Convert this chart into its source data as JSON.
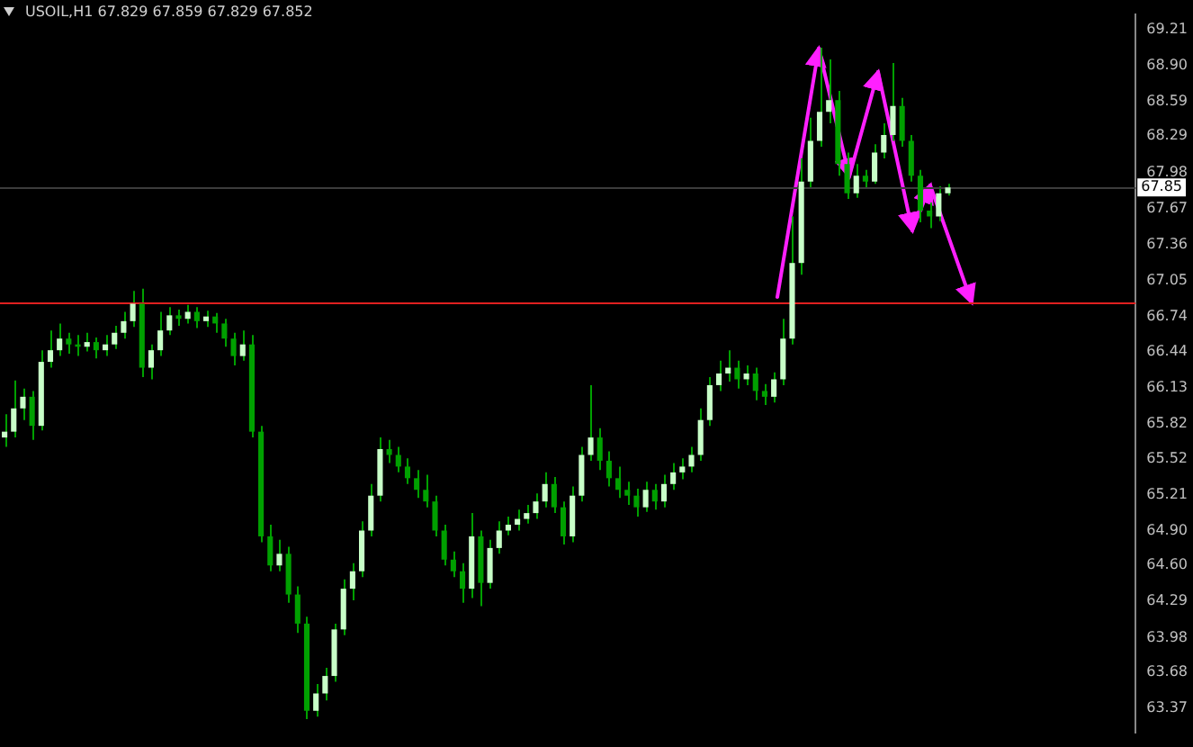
{
  "chart_data": {
    "type": "candlestick",
    "title": "USOIL,H1 67.829 67.859 67.829 67.852",
    "categories": [
      null,
      null,
      null,
      null,
      null,
      null,
      null,
      null,
      null,
      null,
      null,
      null,
      null,
      null,
      null,
      null,
      null,
      null,
      null,
      null,
      null,
      null,
      null,
      null,
      null,
      null,
      null,
      null,
      null,
      null,
      null,
      null,
      null,
      null,
      null,
      null,
      null,
      null,
      null,
      null,
      null,
      null,
      null,
      null,
      null,
      null,
      null,
      null,
      null,
      null,
      null,
      null,
      null,
      null,
      null,
      null,
      null,
      null,
      null,
      null,
      null,
      null,
      null,
      null,
      null,
      null,
      null,
      null,
      null,
      null,
      null,
      null,
      null,
      null,
      null,
      null,
      null,
      null,
      null,
      null,
      null,
      null,
      null,
      null,
      null,
      null,
      null,
      null,
      null,
      null,
      null,
      null,
      null,
      null,
      null,
      null,
      null,
      null,
      null,
      null,
      null,
      null,
      null,
      null,
      null,
      null,
      null,
      null,
      null,
      null,
      null,
      null,
      null,
      null,
      null,
      null,
      null,
      null,
      null,
      null,
      null,
      null,
      null,
      null
    ],
    "ohlc": [
      [
        65.7,
        65.9,
        65.62,
        65.75
      ],
      [
        65.75,
        66.19,
        65.7,
        65.95
      ],
      [
        65.95,
        66.12,
        65.85,
        66.05
      ],
      [
        66.05,
        66.1,
        65.68,
        65.8
      ],
      [
        65.8,
        66.45,
        65.76,
        66.35
      ],
      [
        66.35,
        66.62,
        66.3,
        66.45
      ],
      [
        66.45,
        66.68,
        66.4,
        66.55
      ],
      [
        66.55,
        66.6,
        66.42,
        66.5
      ],
      [
        66.5,
        66.58,
        66.4,
        66.48
      ],
      [
        66.48,
        66.6,
        66.44,
        66.52
      ],
      [
        66.52,
        66.56,
        66.38,
        66.45
      ],
      [
        66.45,
        66.58,
        66.4,
        66.5
      ],
      [
        66.5,
        66.66,
        66.46,
        66.6
      ],
      [
        66.6,
        66.78,
        66.55,
        66.7
      ],
      [
        66.7,
        66.96,
        66.65,
        66.85
      ],
      [
        66.85,
        66.98,
        66.22,
        66.3
      ],
      [
        66.3,
        66.5,
        66.2,
        66.45
      ],
      [
        66.45,
        66.78,
        66.4,
        66.62
      ],
      [
        66.62,
        66.82,
        66.58,
        66.75
      ],
      [
        66.75,
        66.8,
        66.66,
        66.72
      ],
      [
        66.72,
        66.84,
        66.68,
        66.78
      ],
      [
        66.78,
        66.82,
        66.64,
        66.7
      ],
      [
        66.7,
        66.79,
        66.65,
        66.74
      ],
      [
        66.74,
        66.77,
        66.6,
        66.68
      ],
      [
        66.68,
        66.72,
        66.48,
        66.55
      ],
      [
        66.55,
        66.6,
        66.32,
        66.4
      ],
      [
        66.4,
        66.62,
        66.36,
        66.5
      ],
      [
        66.5,
        66.58,
        65.7,
        65.75
      ],
      [
        65.75,
        65.8,
        64.8,
        64.85
      ],
      [
        64.85,
        64.95,
        64.55,
        64.6
      ],
      [
        64.6,
        64.82,
        64.55,
        64.7
      ],
      [
        64.7,
        64.76,
        64.28,
        64.35
      ],
      [
        64.35,
        64.42,
        64.02,
        64.1
      ],
      [
        64.1,
        64.16,
        63.28,
        63.35
      ],
      [
        63.35,
        63.58,
        63.3,
        63.5
      ],
      [
        63.5,
        63.72,
        63.44,
        63.65
      ],
      [
        63.65,
        64.1,
        63.6,
        64.05
      ],
      [
        64.05,
        64.48,
        64.0,
        64.4
      ],
      [
        64.4,
        64.62,
        64.3,
        64.55
      ],
      [
        64.55,
        64.98,
        64.5,
        64.9
      ],
      [
        64.9,
        65.3,
        64.85,
        65.2
      ],
      [
        65.2,
        65.7,
        65.15,
        65.6
      ],
      [
        65.6,
        65.68,
        65.48,
        65.55
      ],
      [
        65.55,
        65.62,
        65.4,
        65.45
      ],
      [
        65.45,
        65.52,
        65.3,
        65.35
      ],
      [
        65.35,
        65.42,
        65.18,
        65.25
      ],
      [
        65.25,
        65.38,
        65.1,
        65.15
      ],
      [
        65.15,
        65.2,
        64.85,
        64.9
      ],
      [
        64.9,
        64.95,
        64.6,
        64.65
      ],
      [
        64.65,
        64.72,
        64.5,
        64.55
      ],
      [
        64.55,
        64.62,
        64.28,
        64.4
      ],
      [
        64.4,
        65.05,
        64.32,
        64.85
      ],
      [
        64.85,
        64.9,
        64.25,
        64.45
      ],
      [
        64.45,
        64.82,
        64.4,
        64.75
      ],
      [
        64.75,
        64.98,
        64.7,
        64.9
      ],
      [
        64.9,
        65.02,
        64.86,
        64.95
      ],
      [
        64.95,
        65.08,
        64.9,
        65.0
      ],
      [
        65.0,
        65.12,
        64.96,
        65.05
      ],
      [
        65.05,
        65.22,
        65.0,
        65.15
      ],
      [
        65.15,
        65.4,
        65.1,
        65.3
      ],
      [
        65.3,
        65.36,
        65.05,
        65.1
      ],
      [
        65.1,
        65.15,
        64.78,
        64.85
      ],
      [
        64.85,
        65.28,
        64.8,
        65.2
      ],
      [
        65.2,
        65.62,
        65.15,
        65.55
      ],
      [
        65.55,
        66.15,
        65.5,
        65.7
      ],
      [
        65.7,
        65.78,
        65.42,
        65.5
      ],
      [
        65.5,
        65.58,
        65.28,
        65.35
      ],
      [
        65.35,
        65.45,
        65.18,
        65.25
      ],
      [
        65.25,
        65.32,
        65.12,
        65.2
      ],
      [
        65.2,
        65.26,
        65.02,
        65.1
      ],
      [
        65.1,
        65.32,
        65.06,
        65.25
      ],
      [
        65.25,
        65.3,
        65.08,
        65.15
      ],
      [
        65.15,
        65.38,
        65.1,
        65.3
      ],
      [
        65.3,
        65.48,
        65.25,
        65.4
      ],
      [
        65.4,
        65.52,
        65.34,
        65.45
      ],
      [
        65.45,
        65.62,
        65.4,
        65.55
      ],
      [
        65.55,
        65.95,
        65.5,
        65.85
      ],
      [
        65.85,
        66.22,
        65.8,
        66.15
      ],
      [
        66.15,
        66.36,
        66.1,
        66.25
      ],
      [
        66.25,
        66.45,
        66.18,
        66.3
      ],
      [
        66.3,
        66.36,
        66.12,
        66.2
      ],
      [
        66.2,
        66.32,
        66.15,
        66.25
      ],
      [
        66.25,
        66.3,
        66.02,
        66.1
      ],
      [
        66.1,
        66.16,
        65.98,
        66.05
      ],
      [
        66.05,
        66.26,
        66.0,
        66.2
      ],
      [
        66.2,
        66.72,
        66.15,
        66.55
      ],
      [
        66.55,
        67.6,
        66.5,
        67.2
      ],
      [
        67.2,
        68.1,
        67.1,
        67.9
      ],
      [
        67.9,
        68.45,
        67.85,
        68.25
      ],
      [
        68.25,
        69.05,
        68.2,
        68.5
      ],
      [
        68.5,
        68.95,
        68.4,
        68.6
      ],
      [
        68.6,
        68.68,
        67.95,
        68.05
      ],
      [
        68.05,
        68.15,
        67.75,
        67.8
      ],
      [
        67.8,
        68.05,
        67.76,
        67.95
      ],
      [
        67.95,
        68.0,
        67.85,
        67.9
      ],
      [
        67.9,
        68.22,
        67.88,
        68.15
      ],
      [
        68.15,
        68.4,
        68.1,
        68.3
      ],
      [
        68.3,
        68.92,
        68.25,
        68.55
      ],
      [
        68.55,
        68.62,
        68.2,
        68.25
      ],
      [
        68.25,
        68.3,
        67.9,
        67.95
      ],
      [
        67.95,
        68.0,
        67.55,
        67.65
      ],
      [
        67.65,
        67.72,
        67.5,
        67.6
      ],
      [
        67.6,
        67.86,
        67.56,
        67.8
      ],
      [
        67.8,
        67.88,
        67.78,
        67.85
      ],
      null,
      null,
      null,
      null,
      null,
      null,
      null,
      null,
      null,
      null,
      null,
      null,
      null,
      null,
      null,
      null,
      null,
      null,
      null,
      null
    ],
    "color": "#00a000",
    "colors": [
      "#c8ffc8",
      "#c8ffc8",
      "#c8ffc8",
      "#00a000",
      "#c8ffc8",
      "#c8ffc8",
      "#c8ffc8",
      "#00a000",
      "#00a000",
      "#c8ffc8",
      "#00a000",
      "#c8ffc8",
      "#c8ffc8",
      "#c8ffc8",
      "#c8ffc8",
      "#00a000",
      "#c8ffc8",
      "#c8ffc8",
      "#c8ffc8",
      "#00a000",
      "#c8ffc8",
      "#00a000",
      "#c8ffc8",
      "#00a000",
      "#00a000",
      "#00a000",
      "#c8ffc8",
      "#00a000",
      "#00a000",
      "#00a000",
      "#c8ffc8",
      "#00a000",
      "#00a000",
      "#00a000",
      "#c8ffc8",
      "#c8ffc8",
      "#c8ffc8",
      "#c8ffc8",
      "#c8ffc8",
      "#c8ffc8",
      "#c8ffc8",
      "#c8ffc8",
      "#00a000",
      "#00a000",
      "#00a000",
      "#00a000",
      "#00a000",
      "#00a000",
      "#00a000",
      "#00a000",
      "#00a000",
      "#c8ffc8",
      "#00a000",
      "#c8ffc8",
      "#c8ffc8",
      "#c8ffc8",
      "#c8ffc8",
      "#c8ffc8",
      "#c8ffc8",
      "#c8ffc8",
      "#00a000",
      "#00a000",
      "#c8ffc8",
      "#c8ffc8",
      "#c8ffc8",
      "#00a000",
      "#00a000",
      "#00a000",
      "#00a000",
      "#00a000",
      "#c8ffc8",
      "#00a000",
      "#c8ffc8",
      "#c8ffc8",
      "#c8ffc8",
      "#c8ffc8",
      "#c8ffc8",
      "#c8ffc8",
      "#c8ffc8",
      "#c8ffc8",
      "#00a000",
      "#c8ffc8",
      "#00a000",
      "#00a000",
      "#c8ffc8",
      "#c8ffc8",
      "#c8ffc8",
      "#c8ffc8",
      "#c8ffc8",
      "#c8ffc8",
      "#c8ffc8",
      "#00a000",
      "#00a000",
      "#c8ffc8",
      "#00a000",
      "#c8ffc8",
      "#c8ffc8",
      "#c8ffc8",
      "#00a000",
      "#00a000",
      "#00a000",
      "#00a000",
      "#c8ffc8",
      "#c8ffc8",
      null,
      null,
      null,
      null,
      null,
      null,
      null,
      null,
      null,
      null,
      null,
      null,
      null,
      null,
      null,
      null,
      null,
      null,
      null,
      null
    ],
    "ylim": [
      63.16,
      69.34
    ],
    "yticks": [
      {
        "value": 69.21,
        "label": "69.21"
      },
      {
        "value": 68.9,
        "label": "68.90"
      },
      {
        "value": 68.59,
        "label": "68.59"
      },
      {
        "value": 68.29,
        "label": "68.29"
      },
      {
        "value": 67.98,
        "label": "67.98"
      },
      {
        "value": 67.67,
        "label": "67.67"
      },
      {
        "value": 67.36,
        "label": "67.36"
      },
      {
        "value": 67.05,
        "label": "67.05"
      },
      {
        "value": 66.74,
        "label": "66.74"
      },
      {
        "value": 66.44,
        "label": "66.44"
      },
      {
        "value": 66.13,
        "label": "66.13"
      },
      {
        "value": 65.82,
        "label": "65.82"
      },
      {
        "value": 65.52,
        "label": "65.52"
      },
      {
        "value": 65.21,
        "label": "65.21"
      },
      {
        "value": 64.9,
        "label": "64.90"
      },
      {
        "value": 64.6,
        "label": "64.60"
      },
      {
        "value": 64.29,
        "label": "64.29"
      },
      {
        "value": 63.98,
        "label": "63.98"
      },
      {
        "value": 63.68,
        "label": "63.68"
      },
      {
        "value": 63.37,
        "label": "63.37"
      }
    ],
    "ref_lines": [
      {
        "axis": "y",
        "value": 66.86,
        "color": "#e02020"
      },
      {
        "axis": "y",
        "value": 67.85,
        "label": "67.85",
        "color": "#3c3c3c"
      }
    ],
    "tick_labels": "y"
  }
}
